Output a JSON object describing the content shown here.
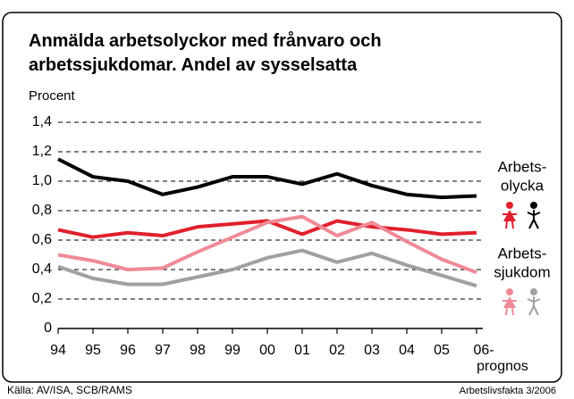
{
  "chart_data": {
    "type": "line",
    "title": [
      "Anmälda arbetsolyckor med frånvaro och",
      "arbetssjukdomar. Andel av sysselsatta"
    ],
    "y_label": "Procent",
    "categories": [
      "94",
      "95",
      "96",
      "97",
      "98",
      "99",
      "00",
      "01",
      "02",
      "03",
      "04",
      "05",
      "06-"
    ],
    "x_note": "prognos",
    "series": [
      {
        "color": "#000000",
        "values": [
          1.15,
          1.03,
          1.0,
          0.91,
          0.96,
          1.03,
          1.03,
          0.98,
          1.05,
          0.97,
          0.91,
          0.89,
          0.9
        ]
      },
      {
        "color": "#e0202c",
        "values": [
          0.67,
          0.62,
          0.65,
          0.63,
          0.69,
          0.71,
          0.73,
          0.64,
          0.73,
          0.69,
          0.67,
          0.64,
          0.65
        ]
      },
      {
        "color": "#f08a96",
        "values": [
          0.5,
          0.46,
          0.4,
          0.41,
          0.52,
          0.62,
          0.72,
          0.76,
          0.63,
          0.72,
          0.59,
          0.47,
          0.38
        ]
      },
      {
        "color": "#a0a0a0",
        "values": [
          0.42,
          0.34,
          0.3,
          0.3,
          0.35,
          0.4,
          0.48,
          0.53,
          0.45,
          0.51,
          0.43,
          0.36,
          0.29
        ]
      }
    ],
    "legend": [
      {
        "lines": [
          "Arbets-",
          "olycka"
        ],
        "female": 1,
        "male": 0
      },
      {
        "lines": [
          "Arbets-",
          "sjukdom"
        ],
        "female": 2,
        "male": 3
      }
    ],
    "ylim": [
      0,
      1.4
    ],
    "yticks": [
      0,
      {
        "value": 0.2,
        "label": "0,2"
      },
      {
        "value": 0.4,
        "label": "0,4"
      },
      {
        "value": 0.6,
        "label": "0,6"
      },
      {
        "value": 0.8,
        "label": "0,8"
      },
      {
        "value": 1.0,
        "label": "1,0"
      },
      {
        "value": 1.2,
        "label": "1,2"
      },
      {
        "value": 1.4,
        "label": "1,4"
      }
    ],
    "grid": true,
    "source": "Källa: AV/ISA, SCB/RAMS",
    "credit": "Arbetslivsfakta 3/2006"
  }
}
